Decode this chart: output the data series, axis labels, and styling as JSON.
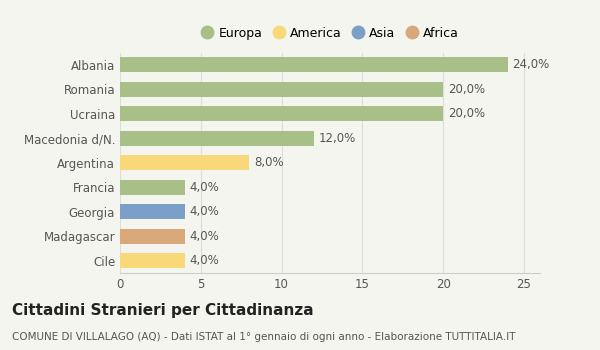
{
  "categories": [
    "Albania",
    "Romania",
    "Ucraina",
    "Macedonia d/N.",
    "Argentina",
    "Francia",
    "Georgia",
    "Madagascar",
    "Cile"
  ],
  "values": [
    24.0,
    20.0,
    20.0,
    12.0,
    8.0,
    4.0,
    4.0,
    4.0,
    4.0
  ],
  "colors": [
    "#a8bf88",
    "#a8bf88",
    "#a8bf88",
    "#a8bf88",
    "#f8d878",
    "#a8bf88",
    "#7b9fc7",
    "#d8a87a",
    "#f8d878"
  ],
  "labels": [
    "24,0%",
    "20,0%",
    "20,0%",
    "12,0%",
    "8,0%",
    "4,0%",
    "4,0%",
    "4,0%",
    "4,0%"
  ],
  "xlim": [
    0,
    26
  ],
  "xticks": [
    0,
    5,
    10,
    15,
    20,
    25
  ],
  "legend_items": [
    "Europa",
    "America",
    "Asia",
    "Africa"
  ],
  "legend_colors": [
    "#a8bf88",
    "#f8d878",
    "#7b9fc7",
    "#d8a87a"
  ],
  "title": "Cittadini Stranieri per Cittadinanza",
  "subtitle": "COMUNE DI VILLALAGO (AQ) - Dati ISTAT al 1° gennaio di ogni anno - Elaborazione TUTTITALIA.IT",
  "bg_color": "#f5f5f0",
  "plot_bg_color": "#f5f5f0",
  "bar_height": 0.6,
  "label_fontsize": 8.5,
  "tick_fontsize": 8.5,
  "title_fontsize": 11,
  "subtitle_fontsize": 7.5
}
